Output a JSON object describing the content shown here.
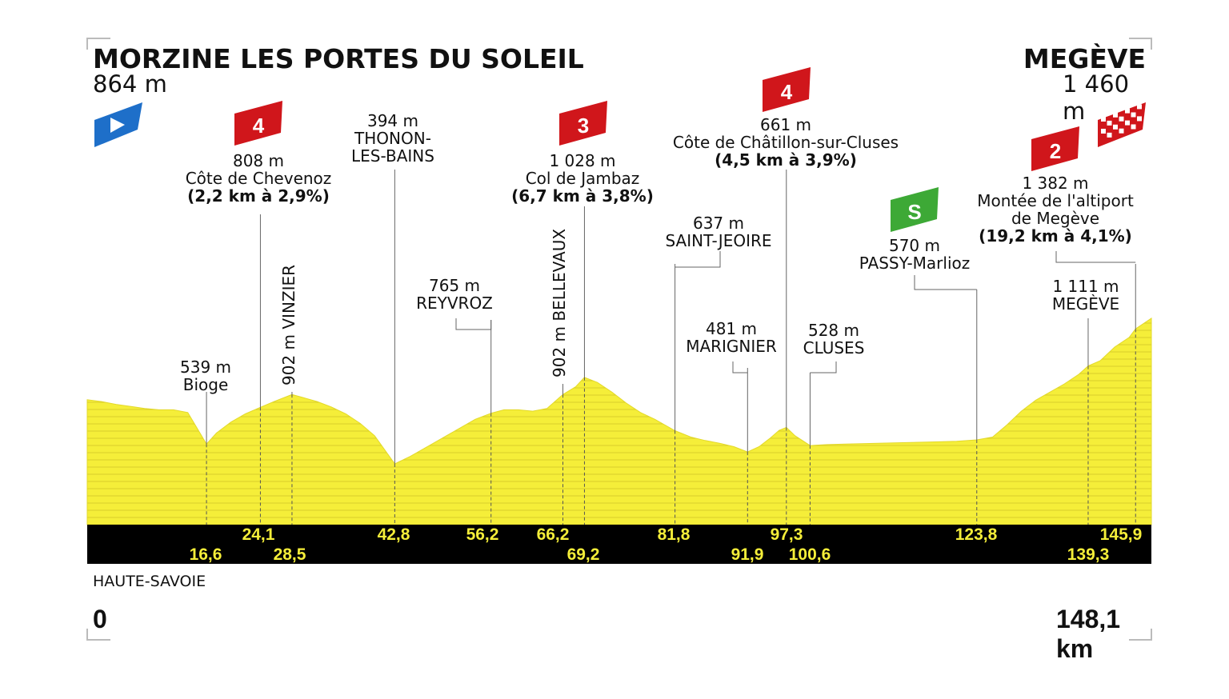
{
  "start": {
    "name": "MORZINE LES PORTES DU SOLEIL",
    "altitude": "864 m"
  },
  "finish": {
    "name": "MEGÈVE",
    "altitude": "1 460 m"
  },
  "region": "HAUTE-SAVOIE",
  "colors": {
    "profile": "#f5ee39",
    "km_band": "#000000",
    "km_text": "#f5ee39",
    "climb_badge": "#d0161b",
    "sprint_badge": "#3da936",
    "start_flag": "#1e6fc9"
  },
  "icons": {
    "start": "start-flag-icon",
    "finish": "checkered-flag-icon",
    "climb": "climb-category-badge",
    "sprint": "sprint-badge"
  },
  "chart_data": {
    "type": "area",
    "title": "MORZINE LES PORTES DU SOLEIL – MEGÈVE",
    "xlabel": "",
    "ylabel": "",
    "x_start_label": "0",
    "x_end_label": "148,1 km",
    "xlim": [
      0,
      148.1
    ],
    "ylim": [
      300,
      1600
    ],
    "profile": [
      [
        0,
        864
      ],
      [
        2,
        850
      ],
      [
        4,
        830
      ],
      [
        6,
        815
      ],
      [
        8,
        800
      ],
      [
        10,
        790
      ],
      [
        12,
        790
      ],
      [
        14,
        770
      ],
      [
        16.6,
        539
      ],
      [
        18,
        620
      ],
      [
        20,
        700
      ],
      [
        22,
        760
      ],
      [
        24.1,
        808
      ],
      [
        26,
        850
      ],
      [
        28.5,
        902
      ],
      [
        30,
        880
      ],
      [
        32,
        850
      ],
      [
        34,
        810
      ],
      [
        36,
        760
      ],
      [
        38,
        690
      ],
      [
        40,
        600
      ],
      [
        42.8,
        394
      ],
      [
        45,
        450
      ],
      [
        48,
        540
      ],
      [
        50,
        600
      ],
      [
        52,
        660
      ],
      [
        54,
        720
      ],
      [
        56.2,
        765
      ],
      [
        58,
        790
      ],
      [
        60,
        790
      ],
      [
        62,
        780
      ],
      [
        64,
        800
      ],
      [
        66.2,
        902
      ],
      [
        68,
        960
      ],
      [
        69.2,
        1028
      ],
      [
        71,
        990
      ],
      [
        73,
        920
      ],
      [
        75,
        840
      ],
      [
        77,
        770
      ],
      [
        79,
        720
      ],
      [
        81.8,
        637
      ],
      [
        84,
        590
      ],
      [
        86,
        565
      ],
      [
        88,
        545
      ],
      [
        90,
        520
      ],
      [
        91.9,
        481
      ],
      [
        93.5,
        520
      ],
      [
        95,
        580
      ],
      [
        96.3,
        640
      ],
      [
        97.3,
        661
      ],
      [
        98.5,
        600
      ],
      [
        100.6,
        528
      ],
      [
        103,
        535
      ],
      [
        106,
        540
      ],
      [
        110,
        545
      ],
      [
        114,
        550
      ],
      [
        118,
        555
      ],
      [
        121,
        560
      ],
      [
        123.8,
        570
      ],
      [
        126,
        590
      ],
      [
        128,
        680
      ],
      [
        130,
        780
      ],
      [
        132,
        860
      ],
      [
        134,
        920
      ],
      [
        136,
        980
      ],
      [
        138,
        1050
      ],
      [
        139.3,
        1111
      ],
      [
        141,
        1150
      ],
      [
        143,
        1250
      ],
      [
        145,
        1320
      ],
      [
        145.9,
        1382
      ],
      [
        148.1,
        1460
      ]
    ],
    "points": [
      {
        "km": "16,6",
        "name": "Bioge",
        "alt": "539 m"
      },
      {
        "km": "24,1",
        "name": "Côte de Chevenoz",
        "alt": "808 m",
        "climb": "4",
        "climb_detail": "(2,2 km à 2,9%)"
      },
      {
        "km": "28,5",
        "name": "VINZIER",
        "alt": "902 m"
      },
      {
        "km": "42,8",
        "name": "THONON-LES-BAINS",
        "alt": "394 m"
      },
      {
        "km": "56,2",
        "name": "REYVROZ",
        "alt": "765 m"
      },
      {
        "km": "66,2",
        "name": "BELLEVAUX",
        "alt": "902 m"
      },
      {
        "km": "69,2",
        "name": "Col de Jambaz",
        "alt": "1 028 m",
        "climb": "3",
        "climb_detail": "(6,7 km à 3,8%)"
      },
      {
        "km": "81,8",
        "name": "SAINT-JEOIRE",
        "alt": "637 m"
      },
      {
        "km": "91,9",
        "name": "MARIGNIER",
        "alt": "481 m"
      },
      {
        "km": "97,3",
        "name": "Côte de Châtillon-sur-Cluses",
        "alt": "661 m",
        "climb": "4",
        "climb_detail": "(4,5 km à 3,9%)"
      },
      {
        "km": "100,6",
        "name": "CLUSES",
        "alt": "528 m"
      },
      {
        "km": "123,8",
        "name": "PASSY-Marlioz",
        "alt": "570 m",
        "sprint": "S"
      },
      {
        "km": "139,3",
        "name": "MEGÈVE",
        "alt": "1 111 m"
      },
      {
        "km": "145,9",
        "name": "Montée de l'altiport de Megève",
        "alt": "1 382 m",
        "climb": "2",
        "climb_detail": "(19,2 km à 4,1%)"
      }
    ]
  }
}
